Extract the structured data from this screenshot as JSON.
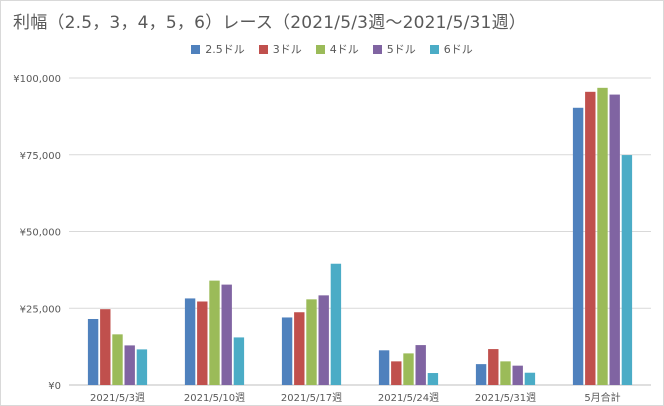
{
  "chart_data": {
    "type": "bar",
    "title": "利幅（2.5，3，4，5，6）レース（2021/5/3週〜2021/5/31週）",
    "categories": [
      "2021/5/3週",
      "2021/5/10週",
      "2021/5/17週",
      "2021/5/24週",
      "2021/5/31週",
      "5月合計"
    ],
    "y_ticks": [
      "¥0",
      "¥25,000",
      "¥50,000",
      "¥75,000",
      "¥100,000"
    ],
    "ylim": [
      0,
      100000
    ],
    "grid": true,
    "legend_position": "top",
    "series": [
      {
        "name": "2.5ドル",
        "color": "#4f81bd",
        "values": [
          21500,
          28200,
          22000,
          11300,
          6800,
          90300
        ]
      },
      {
        "name": "3ドル",
        "color": "#c0504d",
        "values": [
          24700,
          27200,
          23700,
          7700,
          11700,
          95500
        ]
      },
      {
        "name": "4ドル",
        "color": "#9bbb59",
        "values": [
          16500,
          34000,
          27900,
          10300,
          7700,
          96800
        ]
      },
      {
        "name": "5ドル",
        "color": "#8064a2",
        "values": [
          12900,
          32700,
          29200,
          13000,
          6300,
          94600
        ]
      },
      {
        "name": "6ドル",
        "color": "#4bacc6",
        "values": [
          11600,
          15500,
          39500,
          3900,
          4000,
          74900
        ]
      }
    ]
  }
}
